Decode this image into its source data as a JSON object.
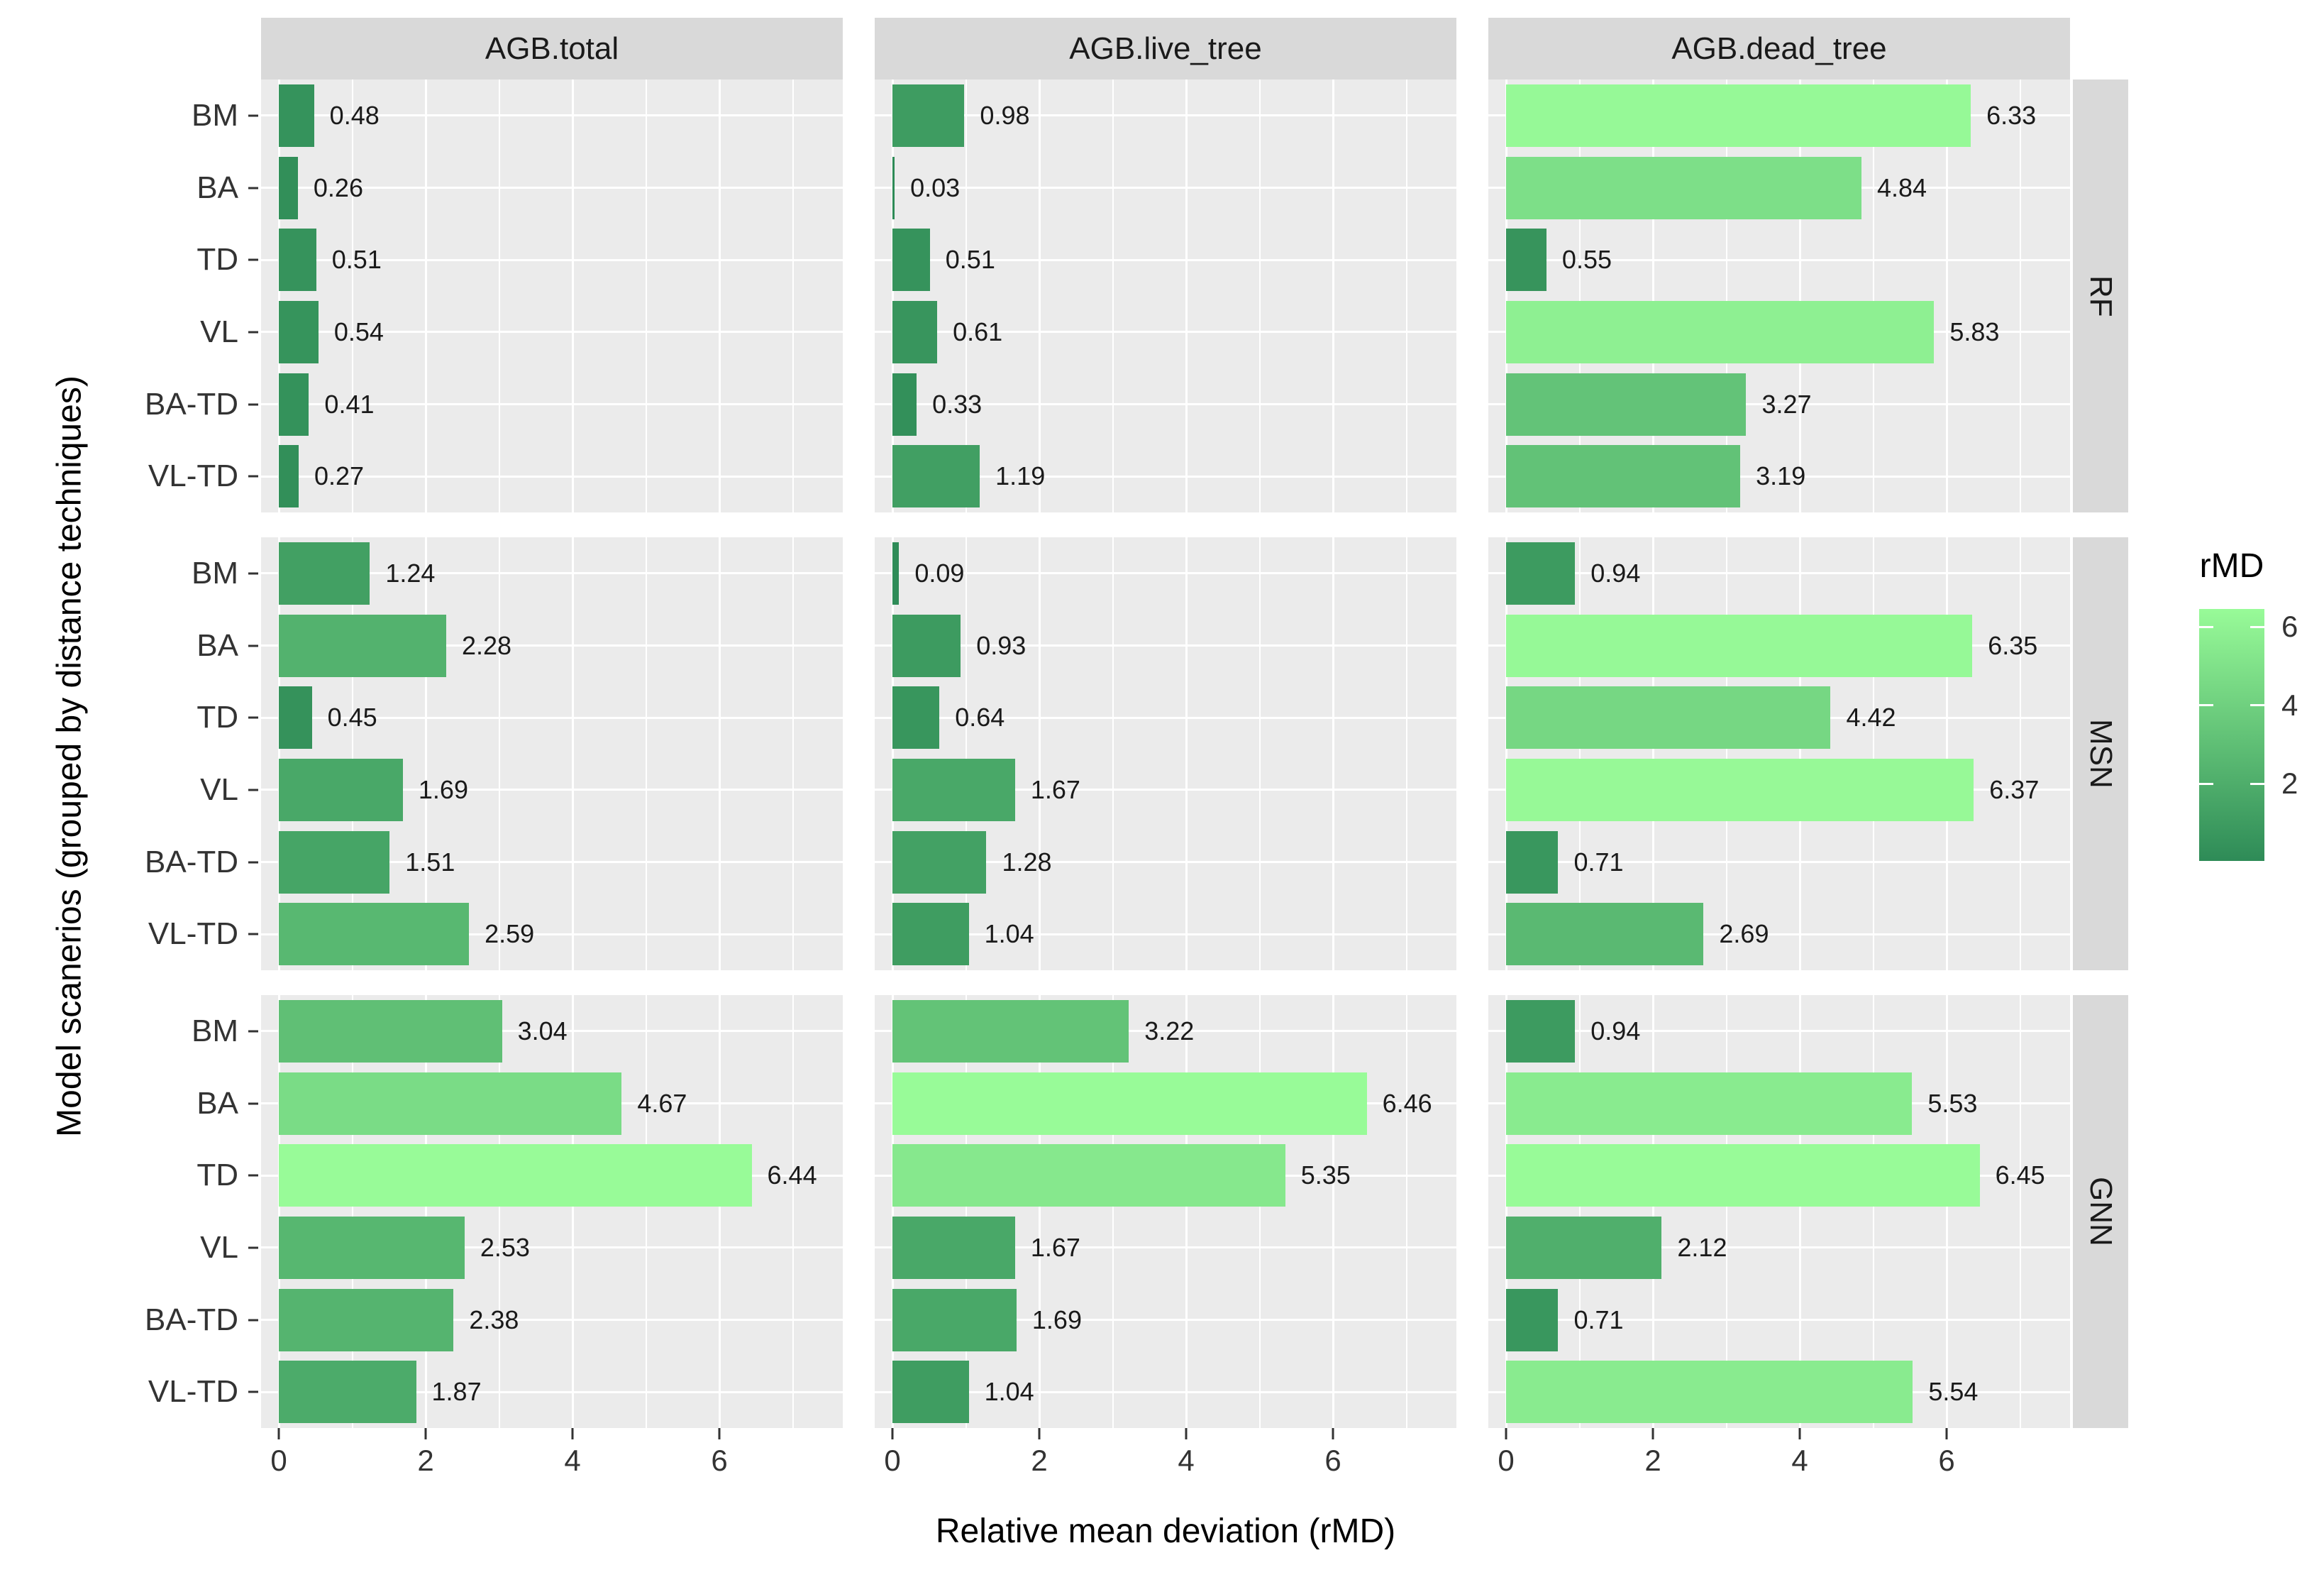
{
  "figure": {
    "x_title": "Relative mean deviation (rMD)",
    "y_title": "Model scanerios (grouped by distance techniques)"
  },
  "legend": {
    "title": "rMD",
    "tick_labels": [
      "6",
      "4",
      "2"
    ],
    "tick_values": [
      6,
      4,
      2
    ]
  },
  "colors": {
    "bar_low": "#2E8B57",
    "bar_high": "#98FB98",
    "panel_bg": "#EBEBEB",
    "strip_bg": "#D9D9D9",
    "gridline": "#FFFFFF",
    "tick_text": "#333333",
    "label_text": "#1A1A1A"
  },
  "chart_data": {
    "type": "bar",
    "orientation": "horizontal",
    "title": "",
    "xlabel": "Relative mean deviation (rMD)",
    "ylabel": "Model scanerios (grouped by distance techniques)",
    "x_axis": {
      "tick_labels": [
        "0",
        "2",
        "4",
        "6"
      ],
      "tick_values": [
        0,
        2,
        4,
        6
      ],
      "minor_gridlines": [
        1,
        3,
        5,
        7
      ],
      "xlim": [
        0,
        7.7
      ]
    },
    "facet_columns": [
      "AGB.total",
      "AGB.live_tree",
      "AGB.dead_tree"
    ],
    "facet_rows": [
      "RF",
      "MSN",
      "GNN"
    ],
    "categories": [
      "BM",
      "BA",
      "TD",
      "VL",
      "BA-TD",
      "VL-TD"
    ],
    "color_scale": {
      "legend_title": "rMD",
      "low_value": 0.03,
      "high_value": 6.46,
      "low_color": "#2E8B57",
      "high_color": "#98FB98"
    },
    "series": [
      {
        "facet_row": "RF",
        "values": [
          [
            0.48,
            0.26,
            0.51,
            0.54,
            0.41,
            0.27
          ],
          [
            0.98,
            0.03,
            0.51,
            0.61,
            0.33,
            1.19
          ],
          [
            6.33,
            4.84,
            0.55,
            5.83,
            3.27,
            3.19
          ]
        ]
      },
      {
        "facet_row": "MSN",
        "values": [
          [
            1.24,
            2.28,
            0.45,
            1.69,
            1.51,
            2.59
          ],
          [
            0.09,
            0.93,
            0.64,
            1.67,
            1.28,
            1.04
          ],
          [
            0.94,
            6.35,
            4.42,
            6.37,
            0.71,
            2.69
          ]
        ]
      },
      {
        "facet_row": "GNN",
        "values": [
          [
            3.04,
            4.67,
            6.44,
            2.53,
            2.38,
            1.87
          ],
          [
            3.22,
            6.46,
            5.35,
            1.67,
            1.69,
            1.04
          ],
          [
            0.94,
            5.53,
            6.45,
            2.12,
            0.71,
            5.54
          ]
        ]
      }
    ]
  }
}
